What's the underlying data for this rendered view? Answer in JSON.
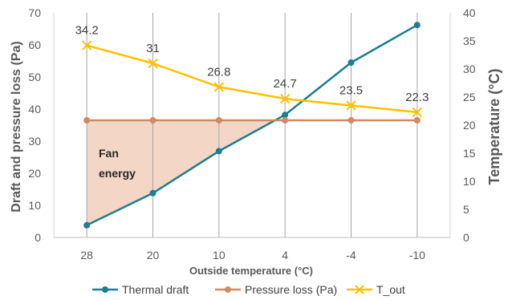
{
  "chart_data": {
    "type": "line",
    "categories": [
      "28",
      "20",
      "10",
      "4",
      "-4",
      "-10"
    ],
    "xlabel": "Outside temperature (°C)",
    "ylabel_left": "Draft and pressure loss (Pa)",
    "ylabel_right": "Temperature (°C)",
    "ylim_left": [
      0,
      70
    ],
    "ylim_right": [
      0,
      40
    ],
    "yticks_left": [
      "0",
      "10",
      "20",
      "30",
      "40",
      "50",
      "60",
      "70"
    ],
    "yticks_right": [
      "0",
      "5",
      "10",
      "15",
      "20",
      "25",
      "30",
      "35",
      "40"
    ],
    "series": [
      {
        "name": "Thermal draft",
        "axis": "left",
        "color": "#1a7f8e",
        "marker": "circle",
        "values": [
          3.8,
          13.8,
          26.9,
          38.2,
          54.5,
          66.2
        ]
      },
      {
        "name": "Pressure loss (Pa)",
        "axis": "left",
        "color": "#d08a62",
        "marker": "circle",
        "values": [
          36.5,
          36.5,
          36.5,
          36.5,
          36.5,
          36.5
        ]
      },
      {
        "name": "T_out",
        "axis": "right",
        "color": "#ffc000",
        "marker": "x",
        "values": [
          34.2,
          31,
          26.8,
          24.7,
          23.5,
          22.3
        ],
        "data_labels": [
          "34.2",
          "31",
          "26.8",
          "24.7",
          "23.5",
          "22.3"
        ]
      }
    ],
    "shaded_region": {
      "label_lines": [
        "Fan",
        "energy"
      ],
      "color": "#f4d6c6"
    },
    "grid": "vertical",
    "legend_position": "bottom"
  }
}
